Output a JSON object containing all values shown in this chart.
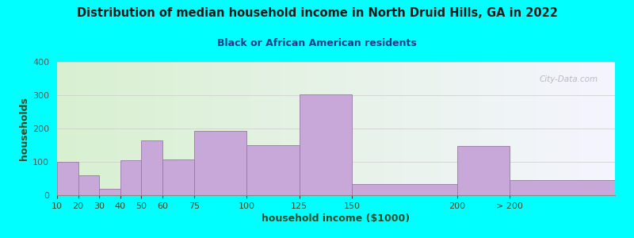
{
  "title": "Distribution of median household income in North Druid Hills, GA in 2022",
  "subtitle": "Black or African American residents",
  "xlabel": "household income ($1000)",
  "ylabel": "households",
  "background_color": "#00FFFF",
  "plot_bg_gradient_left": "#d8f0d0",
  "plot_bg_gradient_right": "#f5f5ff",
  "bar_color": "#C8A8D8",
  "bar_edgecolor": "#9878a8",
  "title_color": "#1a1a1a",
  "subtitle_color": "#1a3a8a",
  "axis_label_color": "#2a4a2a",
  "tick_label_color": "#2a4a2a",
  "ytick_color": "#555555",
  "bar_lefts": [
    10,
    20,
    30,
    40,
    50,
    60,
    75,
    100,
    125,
    150,
    200,
    225
  ],
  "bar_widths": [
    10,
    10,
    10,
    10,
    10,
    15,
    25,
    25,
    25,
    50,
    25,
    50
  ],
  "values": [
    100,
    60,
    20,
    105,
    165,
    108,
    193,
    150,
    303,
    33,
    148,
    45
  ],
  "xtick_positions": [
    10,
    20,
    30,
    40,
    50,
    60,
    75,
    100,
    125,
    150,
    200,
    225
  ],
  "xtick_labels": [
    "10",
    "20",
    "30",
    "40",
    "50",
    "60",
    "75",
    "100",
    "125",
    "150",
    "200",
    "> 200"
  ],
  "xlim": [
    10,
    275
  ],
  "ylim": [
    0,
    400
  ],
  "yticks": [
    0,
    100,
    200,
    300,
    400
  ],
  "watermark_text": "City-Data.com"
}
